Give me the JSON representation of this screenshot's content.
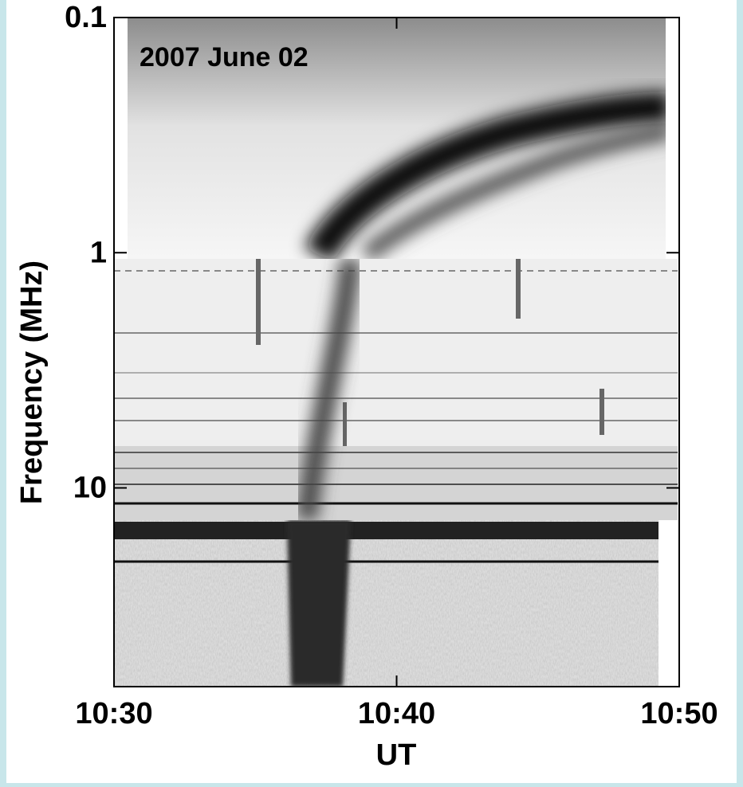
{
  "chart_data": {
    "type": "spectrogram",
    "annotation": "2007 June 02",
    "xlabel": "UT",
    "ylabel": "Frequency (MHz)",
    "xlim": [
      "10:30",
      "10:50"
    ],
    "xticks": [
      "10:30",
      "10:40",
      "10:50"
    ],
    "ylim": [
      0.1,
      70
    ],
    "yticks": [
      0.1,
      1,
      10
    ],
    "yscale": "log",
    "yinverted": true
  }
}
